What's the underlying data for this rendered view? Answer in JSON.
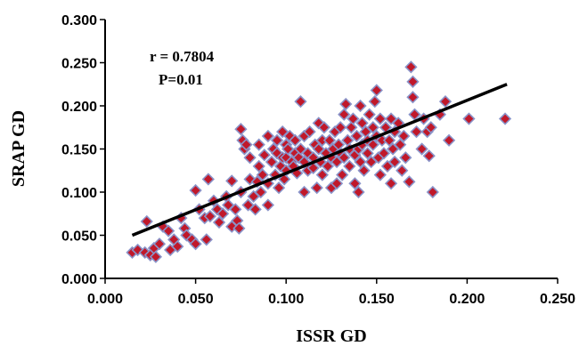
{
  "chart_data": {
    "type": "scatter",
    "title": "",
    "xlabel": "ISSR GD",
    "ylabel": "SRAP GD",
    "xlim": [
      0,
      0.25
    ],
    "ylim": [
      0,
      0.3
    ],
    "x_ticks": [
      "0.000",
      "0.050",
      "0.100",
      "0.150",
      "0.200",
      "0.250"
    ],
    "y_ticks": [
      "0.000",
      "0.050",
      "0.100",
      "0.150",
      "0.200",
      "0.250",
      "0.300"
    ],
    "grid": false,
    "legend": "none",
    "annotations": {
      "r": "r = 0.7804",
      "p": "P=0.01"
    },
    "trendline": {
      "x": [
        0.015,
        0.222
      ],
      "y": [
        0.05,
        0.225
      ]
    },
    "marker_color": "#c0182a",
    "marker_edge": "#8a93c8",
    "series": [
      {
        "points": [
          [
            0.015,
            0.03
          ],
          [
            0.018,
            0.033
          ],
          [
            0.022,
            0.03
          ],
          [
            0.023,
            0.066
          ],
          [
            0.025,
            0.027
          ],
          [
            0.027,
            0.035
          ],
          [
            0.028,
            0.025
          ],
          [
            0.03,
            0.04
          ],
          [
            0.032,
            0.06
          ],
          [
            0.035,
            0.055
          ],
          [
            0.036,
            0.033
          ],
          [
            0.038,
            0.045
          ],
          [
            0.04,
            0.037
          ],
          [
            0.042,
            0.07
          ],
          [
            0.044,
            0.058
          ],
          [
            0.045,
            0.05
          ],
          [
            0.048,
            0.045
          ],
          [
            0.05,
            0.04
          ],
          [
            0.05,
            0.102
          ],
          [
            0.052,
            0.08
          ],
          [
            0.055,
            0.07
          ],
          [
            0.056,
            0.045
          ],
          [
            0.057,
            0.115
          ],
          [
            0.058,
            0.072
          ],
          [
            0.06,
            0.09
          ],
          [
            0.062,
            0.08
          ],
          [
            0.063,
            0.065
          ],
          [
            0.065,
            0.075
          ],
          [
            0.067,
            0.095
          ],
          [
            0.068,
            0.085
          ],
          [
            0.07,
            0.06
          ],
          [
            0.07,
            0.113
          ],
          [
            0.072,
            0.08
          ],
          [
            0.073,
            0.067
          ],
          [
            0.074,
            0.058
          ],
          [
            0.075,
            0.1
          ],
          [
            0.075,
            0.173
          ],
          [
            0.076,
            0.16
          ],
          [
            0.077,
            0.15
          ],
          [
            0.078,
            0.155
          ],
          [
            0.079,
            0.085
          ],
          [
            0.08,
            0.14
          ],
          [
            0.08,
            0.115
          ],
          [
            0.082,
            0.095
          ],
          [
            0.083,
            0.08
          ],
          [
            0.084,
            0.112
          ],
          [
            0.085,
            0.155
          ],
          [
            0.085,
            0.13
          ],
          [
            0.086,
            0.1
          ],
          [
            0.087,
            0.12
          ],
          [
            0.088,
            0.143
          ],
          [
            0.09,
            0.165
          ],
          [
            0.09,
            0.11
          ],
          [
            0.09,
            0.085
          ],
          [
            0.092,
            0.135
          ],
          [
            0.093,
            0.15
          ],
          [
            0.094,
            0.12
          ],
          [
            0.095,
            0.16
          ],
          [
            0.095,
            0.145
          ],
          [
            0.096,
            0.105
          ],
          [
            0.097,
            0.13
          ],
          [
            0.098,
            0.17
          ],
          [
            0.098,
            0.14
          ],
          [
            0.099,
            0.115
          ],
          [
            0.1,
            0.155
          ],
          [
            0.1,
            0.14
          ],
          [
            0.1,
            0.125
          ],
          [
            0.101,
            0.15
          ],
          [
            0.102,
            0.165
          ],
          [
            0.103,
            0.135
          ],
          [
            0.104,
            0.13
          ],
          [
            0.105,
            0.145
          ],
          [
            0.105,
            0.16
          ],
          [
            0.106,
            0.122
          ],
          [
            0.107,
            0.14
          ],
          [
            0.108,
            0.205
          ],
          [
            0.108,
            0.15
          ],
          [
            0.11,
            0.135
          ],
          [
            0.11,
            0.165
          ],
          [
            0.11,
            0.1
          ],
          [
            0.112,
            0.145
          ],
          [
            0.112,
            0.125
          ],
          [
            0.113,
            0.17
          ],
          [
            0.115,
            0.14
          ],
          [
            0.115,
            0.128
          ],
          [
            0.116,
            0.155
          ],
          [
            0.117,
            0.105
          ],
          [
            0.118,
            0.18
          ],
          [
            0.118,
            0.15
          ],
          [
            0.119,
            0.135
          ],
          [
            0.12,
            0.16
          ],
          [
            0.12,
            0.12
          ],
          [
            0.121,
            0.175
          ],
          [
            0.122,
            0.145
          ],
          [
            0.123,
            0.13
          ],
          [
            0.124,
            0.16
          ],
          [
            0.125,
            0.14
          ],
          [
            0.125,
            0.105
          ],
          [
            0.126,
            0.15
          ],
          [
            0.127,
            0.17
          ],
          [
            0.128,
            0.11
          ],
          [
            0.128,
            0.135
          ],
          [
            0.129,
            0.155
          ],
          [
            0.13,
            0.145
          ],
          [
            0.13,
            0.175
          ],
          [
            0.131,
            0.12
          ],
          [
            0.132,
            0.19
          ],
          [
            0.132,
            0.14
          ],
          [
            0.133,
            0.202
          ],
          [
            0.134,
            0.16
          ],
          [
            0.135,
            0.13
          ],
          [
            0.135,
            0.15
          ],
          [
            0.136,
            0.175
          ],
          [
            0.137,
            0.185
          ],
          [
            0.138,
            0.143
          ],
          [
            0.138,
            0.11
          ],
          [
            0.139,
            0.165
          ],
          [
            0.14,
            0.1
          ],
          [
            0.14,
            0.15
          ],
          [
            0.141,
            0.2
          ],
          [
            0.141,
            0.135
          ],
          [
            0.142,
            0.18
          ],
          [
            0.142,
            0.155
          ],
          [
            0.143,
            0.125
          ],
          [
            0.144,
            0.17
          ],
          [
            0.145,
            0.145
          ],
          [
            0.145,
            0.16
          ],
          [
            0.146,
            0.19
          ],
          [
            0.147,
            0.135
          ],
          [
            0.148,
            0.175
          ],
          [
            0.148,
            0.155
          ],
          [
            0.149,
            0.205
          ],
          [
            0.15,
            0.218
          ],
          [
            0.15,
            0.165
          ],
          [
            0.151,
            0.14
          ],
          [
            0.152,
            0.185
          ],
          [
            0.152,
            0.12
          ],
          [
            0.153,
            0.16
          ],
          [
            0.154,
            0.145
          ],
          [
            0.155,
            0.175
          ],
          [
            0.156,
            0.13
          ],
          [
            0.157,
            0.16
          ],
          [
            0.158,
            0.185
          ],
          [
            0.158,
            0.11
          ],
          [
            0.159,
            0.15
          ],
          [
            0.16,
            0.17
          ],
          [
            0.16,
            0.135
          ],
          [
            0.162,
            0.18
          ],
          [
            0.163,
            0.155
          ],
          [
            0.164,
            0.125
          ],
          [
            0.165,
            0.165
          ],
          [
            0.166,
            0.14
          ],
          [
            0.168,
            0.112
          ],
          [
            0.169,
            0.245
          ],
          [
            0.17,
            0.228
          ],
          [
            0.17,
            0.21
          ],
          [
            0.171,
            0.19
          ],
          [
            0.172,
            0.17
          ],
          [
            0.175,
            0.15
          ],
          [
            0.176,
            0.185
          ],
          [
            0.178,
            0.17
          ],
          [
            0.179,
            0.142
          ],
          [
            0.18,
            0.175
          ],
          [
            0.181,
            0.1
          ],
          [
            0.185,
            0.19
          ],
          [
            0.188,
            0.205
          ],
          [
            0.19,
            0.16
          ],
          [
            0.201,
            0.185
          ],
          [
            0.221,
            0.185
          ]
        ]
      }
    ]
  }
}
